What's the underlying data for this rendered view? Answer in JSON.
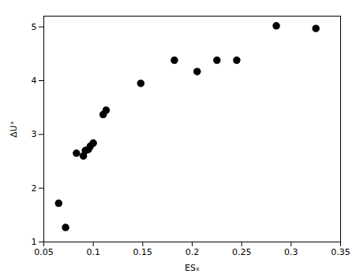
{
  "chart_data": {
    "type": "scatter",
    "x": [
      0.065,
      0.072,
      0.083,
      0.09,
      0.092,
      0.095,
      0.097,
      0.1,
      0.11,
      0.113,
      0.148,
      0.182,
      0.205,
      0.225,
      0.245,
      0.285,
      0.325
    ],
    "values": [
      1.72,
      1.27,
      2.65,
      2.6,
      2.7,
      2.72,
      2.78,
      2.84,
      3.37,
      3.45,
      3.95,
      4.38,
      4.17,
      4.38,
      4.38,
      5.02,
      4.97
    ],
    "xlabel": "ESₓ",
    "ylabel": "ΔU⁺",
    "xlim": [
      0.05,
      0.35
    ],
    "ylim": [
      1.0,
      5.2
    ],
    "xticks": [
      0.05,
      0.1,
      0.15,
      0.2,
      0.25,
      0.3,
      0.35
    ],
    "yticks": [
      1,
      2,
      3,
      4,
      5
    ],
    "color": "black",
    "marker": "circle",
    "grid": false
  }
}
